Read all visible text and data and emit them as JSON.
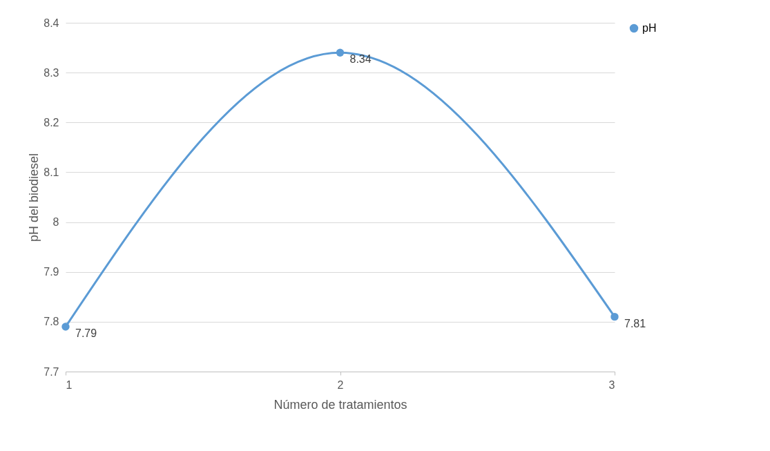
{
  "chart_data": {
    "type": "line",
    "xlabel": "Número de tratamientos",
    "ylabel": "pH del biodiesel",
    "x": [
      1,
      2,
      3
    ],
    "xlim": [
      1,
      3
    ],
    "xticks": [
      1,
      2,
      3
    ],
    "ylim": [
      7.7,
      8.4
    ],
    "yticks": [
      7.7,
      7.8,
      7.9,
      8,
      8.1,
      8.2,
      8.3,
      8.4
    ],
    "series": [
      {
        "name": "pH",
        "color": "#5b9bd5",
        "values": [
          7.79,
          8.34,
          7.81
        ]
      }
    ],
    "data_labels": true,
    "legend": "right",
    "grid": "y",
    "marker": "circle",
    "line_style": "solid"
  }
}
